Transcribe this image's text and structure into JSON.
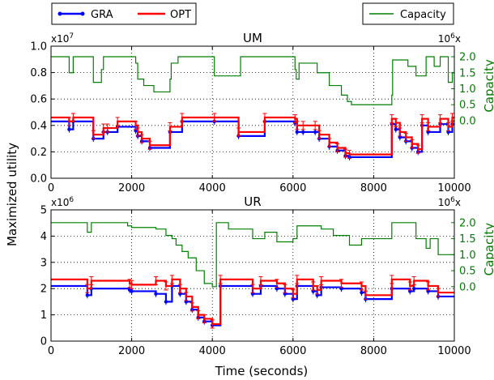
{
  "figure": {
    "shared_ylabel": "Maximized utility",
    "shared_xlabel": "Time (seconds)"
  },
  "legend": {
    "left": [
      {
        "name": "GRA",
        "color": "#0000ff",
        "marker": "dot"
      },
      {
        "name": "OPT",
        "color": "#ff0000",
        "marker": "none"
      }
    ],
    "right": [
      {
        "name": "Capacity",
        "color": "#008000",
        "marker": "none"
      }
    ]
  },
  "chart_data": [
    {
      "type": "line",
      "title": "UM",
      "ylim": [
        0,
        1.0
      ],
      "y_ticks": [
        "0.0",
        "0.2",
        "0.4",
        "0.6",
        "0.8",
        "1.0"
      ],
      "y_multiplier": "x10",
      "y_multiplier_exp": "7",
      "xlim": [
        0,
        10000
      ],
      "x_ticks": [
        "0",
        "2000",
        "4000",
        "6000",
        "8000",
        "10000"
      ],
      "y2_label": "Capacity",
      "y2_ticks": [
        "0.0",
        "0.5",
        "1.0",
        "1.5",
        "2.0"
      ],
      "y2_multiplier": "10",
      "y2_multiplier_exp": "6",
      "y2_multiplier_suffix": "x",
      "y2_map": {
        "y2_at_zero": -1.8,
        "y2_at_top": 2.33
      },
      "grid": true,
      "series": [
        {
          "name": "GRA",
          "color": "#0000ff",
          "steps": [
            [
              0,
              0.43
            ],
            [
              450,
              0.37
            ],
            [
              550,
              0.43
            ],
            [
              1050,
              0.3
            ],
            [
              1300,
              0.35
            ],
            [
              1400,
              0.35
            ],
            [
              1650,
              0.39
            ],
            [
              2100,
              0.36
            ],
            [
              2150,
              0.32
            ],
            [
              2250,
              0.28
            ],
            [
              2450,
              0.23
            ],
            [
              2950,
              0.35
            ],
            [
              3250,
              0.43
            ],
            [
              4050,
              0.43
            ],
            [
              4650,
              0.32
            ],
            [
              5300,
              0.43
            ],
            [
              6050,
              0.42
            ],
            [
              6100,
              0.35
            ],
            [
              6250,
              0.35
            ],
            [
              6550,
              0.35
            ],
            [
              6650,
              0.3
            ],
            [
              6900,
              0.24
            ],
            [
              7100,
              0.21
            ],
            [
              7300,
              0.17
            ],
            [
              7400,
              0.16
            ],
            [
              8450,
              0.41
            ],
            [
              8550,
              0.37
            ],
            [
              8650,
              0.31
            ],
            [
              8800,
              0.28
            ],
            [
              8950,
              0.23
            ],
            [
              9100,
              0.2
            ],
            [
              9200,
              0.4
            ],
            [
              9350,
              0.35
            ],
            [
              9650,
              0.41
            ],
            [
              9850,
              0.35
            ],
            [
              9950,
              0.41
            ],
            [
              10000,
              0.41
            ]
          ]
        },
        {
          "name": "OPT",
          "color": "#ff0000",
          "steps": [
            [
              0,
              0.46
            ],
            [
              450,
              0.43
            ],
            [
              550,
              0.46
            ],
            [
              1050,
              0.33
            ],
            [
              1300,
              0.38
            ],
            [
              1400,
              0.38
            ],
            [
              1650,
              0.43
            ],
            [
              2100,
              0.4
            ],
            [
              2150,
              0.35
            ],
            [
              2250,
              0.3
            ],
            [
              2450,
              0.25
            ],
            [
              2950,
              0.39
            ],
            [
              3250,
              0.46
            ],
            [
              4050,
              0.46
            ],
            [
              4650,
              0.35
            ],
            [
              5300,
              0.46
            ],
            [
              6050,
              0.45
            ],
            [
              6100,
              0.4
            ],
            [
              6250,
              0.4
            ],
            [
              6550,
              0.4
            ],
            [
              6650,
              0.33
            ],
            [
              6900,
              0.27
            ],
            [
              7100,
              0.23
            ],
            [
              7300,
              0.19
            ],
            [
              7400,
              0.18
            ],
            [
              8450,
              0.45
            ],
            [
              8550,
              0.42
            ],
            [
              8650,
              0.35
            ],
            [
              8800,
              0.31
            ],
            [
              8950,
              0.26
            ],
            [
              9100,
              0.22
            ],
            [
              9200,
              0.45
            ],
            [
              9350,
              0.39
            ],
            [
              9650,
              0.45
            ],
            [
              9850,
              0.39
            ],
            [
              9950,
              0.46
            ],
            [
              10000,
              0.46
            ]
          ]
        },
        {
          "name": "Capacity",
          "color": "#008000",
          "steps": [
            [
              0,
              2.0
            ],
            [
              450,
              1.5
            ],
            [
              550,
              2.0
            ],
            [
              1050,
              1.2
            ],
            [
              1250,
              1.6
            ],
            [
              1300,
              2.0
            ],
            [
              2100,
              1.8
            ],
            [
              2150,
              1.3
            ],
            [
              2300,
              1.1
            ],
            [
              2550,
              0.9
            ],
            [
              2950,
              1.3
            ],
            [
              2980,
              1.8
            ],
            [
              3150,
              2.0
            ],
            [
              4050,
              1.4
            ],
            [
              4700,
              2.0
            ],
            [
              6050,
              1.6
            ],
            [
              6080,
              1.3
            ],
            [
              6150,
              1.8
            ],
            [
              6600,
              1.5
            ],
            [
              6900,
              1.1
            ],
            [
              7200,
              0.8
            ],
            [
              7350,
              0.6
            ],
            [
              7450,
              0.5
            ],
            [
              8450,
              0.8
            ],
            [
              8470,
              1.9
            ],
            [
              8850,
              1.7
            ],
            [
              9050,
              1.4
            ],
            [
              9300,
              2.0
            ],
            [
              9500,
              1.7
            ],
            [
              9650,
              2.0
            ],
            [
              9850,
              1.2
            ],
            [
              9950,
              1.5
            ],
            [
              10000,
              1.5
            ]
          ]
        }
      ]
    },
    {
      "type": "line",
      "title": "UR",
      "ylim": [
        0,
        5
      ],
      "y_ticks": [
        "0",
        "1",
        "2",
        "3",
        "4",
        "5"
      ],
      "y_multiplier": "x10",
      "y_multiplier_exp": "6",
      "xlim": [
        0,
        10000
      ],
      "x_ticks": [
        "0",
        "2000",
        "4000",
        "6000",
        "8000",
        "10000"
      ],
      "y2_label": "Capacity",
      "y2_ticks": [
        "0.0",
        "0.5",
        "1.0",
        "1.5",
        "2.0"
      ],
      "y2_multiplier": "10",
      "y2_multiplier_exp": "6",
      "y2_multiplier_suffix": "x",
      "y2_map": {
        "y2_at_zero": -1.7,
        "y2_at_top": 2.4
      },
      "grid": true,
      "series": [
        {
          "name": "GRA",
          "color": "#0000ff",
          "steps": [
            [
              0,
              2.1
            ],
            [
              900,
              1.75
            ],
            [
              1000,
              2.0
            ],
            [
              1950,
              1.95
            ],
            [
              2000,
              1.9
            ],
            [
              2600,
              1.8
            ],
            [
              2850,
              1.5
            ],
            [
              3000,
              2.1
            ],
            [
              3200,
              1.8
            ],
            [
              3350,
              1.5
            ],
            [
              3500,
              1.2
            ],
            [
              3650,
              0.9
            ],
            [
              3800,
              0.75
            ],
            [
              4000,
              0.6
            ],
            [
              4200,
              2.1
            ],
            [
              5000,
              1.8
            ],
            [
              5200,
              2.1
            ],
            [
              5600,
              2.0
            ],
            [
              5800,
              1.8
            ],
            [
              6000,
              1.6
            ],
            [
              6100,
              2.1
            ],
            [
              6500,
              1.9
            ],
            [
              6600,
              1.75
            ],
            [
              6700,
              2.05
            ],
            [
              7200,
              2.0
            ],
            [
              7700,
              1.85
            ],
            [
              7800,
              1.6
            ],
            [
              8450,
              2.0
            ],
            [
              8900,
              1.9
            ],
            [
              9000,
              2.0
            ],
            [
              9350,
              1.9
            ],
            [
              9600,
              1.7
            ],
            [
              10000,
              1.7
            ]
          ]
        },
        {
          "name": "OPT",
          "color": "#ff0000",
          "steps": [
            [
              0,
              2.35
            ],
            [
              900,
              2.0
            ],
            [
              1000,
              2.3
            ],
            [
              1950,
              2.2
            ],
            [
              2000,
              2.15
            ],
            [
              2600,
              2.3
            ],
            [
              2850,
              2.1
            ],
            [
              3000,
              2.35
            ],
            [
              3200,
              2.0
            ],
            [
              3350,
              1.7
            ],
            [
              3500,
              1.3
            ],
            [
              3650,
              1.0
            ],
            [
              3800,
              0.85
            ],
            [
              4000,
              0.65
            ],
            [
              4200,
              2.35
            ],
            [
              5000,
              2.0
            ],
            [
              5200,
              2.3
            ],
            [
              5600,
              2.2
            ],
            [
              5800,
              2.0
            ],
            [
              6000,
              1.8
            ],
            [
              6100,
              2.35
            ],
            [
              6500,
              2.1
            ],
            [
              6600,
              1.95
            ],
            [
              6700,
              2.3
            ],
            [
              7200,
              2.2
            ],
            [
              7700,
              2.1
            ],
            [
              7800,
              1.75
            ],
            [
              8450,
              2.35
            ],
            [
              8900,
              2.1
            ],
            [
              9000,
              2.3
            ],
            [
              9350,
              2.1
            ],
            [
              9600,
              1.85
            ],
            [
              10000,
              1.85
            ]
          ]
        },
        {
          "name": "Capacity",
          "color": "#008000",
          "steps": [
            [
              0,
              2.0
            ],
            [
              900,
              1.7
            ],
            [
              1000,
              2.0
            ],
            [
              1900,
              1.9
            ],
            [
              2000,
              1.85
            ],
            [
              2600,
              1.8
            ],
            [
              2850,
              1.6
            ],
            [
              3000,
              1.5
            ],
            [
              3100,
              1.3
            ],
            [
              3250,
              1.1
            ],
            [
              3400,
              0.9
            ],
            [
              3600,
              0.5
            ],
            [
              3800,
              0.1
            ],
            [
              4000,
              0.0
            ],
            [
              4100,
              2.0
            ],
            [
              4400,
              1.8
            ],
            [
              5000,
              1.5
            ],
            [
              5300,
              1.7
            ],
            [
              5600,
              1.4
            ],
            [
              6000,
              1.5
            ],
            [
              6100,
              1.9
            ],
            [
              6700,
              1.8
            ],
            [
              7000,
              1.6
            ],
            [
              7200,
              1.6
            ],
            [
              7400,
              1.3
            ],
            [
              7700,
              1.5
            ],
            [
              8450,
              2.0
            ],
            [
              9050,
              1.5
            ],
            [
              9300,
              1.2
            ],
            [
              9400,
              1.5
            ],
            [
              9600,
              1.0
            ],
            [
              10000,
              1.0
            ]
          ]
        }
      ]
    }
  ]
}
